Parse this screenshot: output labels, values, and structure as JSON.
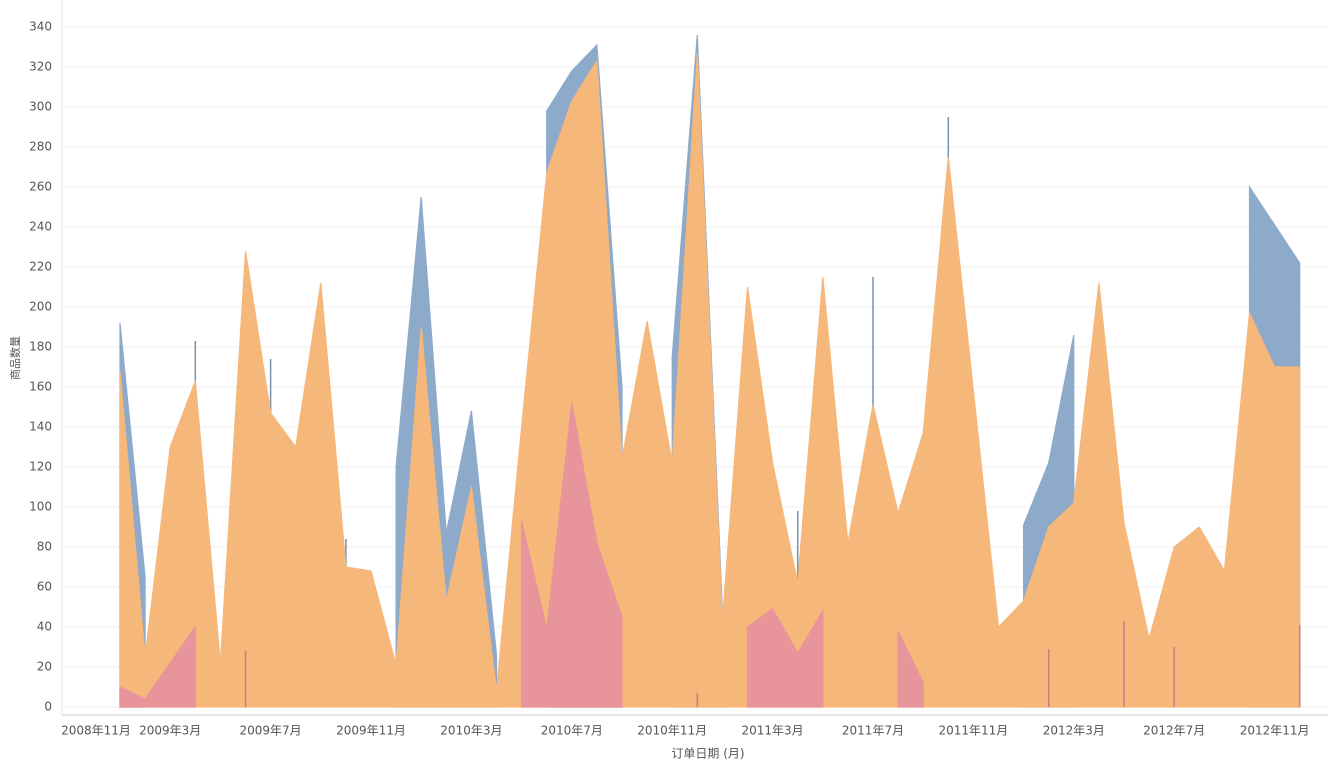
{
  "chart_data": {
    "type": "area",
    "x_label": "订单日期 (月)",
    "y_label": "商品数量",
    "categories": [
      "2008年11月",
      null,
      null,
      null,
      "2009年3月",
      null,
      null,
      null,
      "2009年7月",
      null,
      null,
      null,
      "2009年11月",
      null,
      null,
      null,
      "2010年3月",
      null,
      null,
      null,
      "2010年7月",
      null,
      null,
      null,
      "2010年11月",
      null,
      null,
      null,
      "2011年3月",
      null,
      null,
      null,
      "2011年7月",
      null,
      null,
      null,
      "2011年11月",
      null,
      null,
      null,
      "2012年3月",
      null,
      null,
      null,
      "2012年7月",
      null,
      null,
      null,
      "2012年11月",
      null
    ],
    "ylim": [
      -4,
      352
    ],
    "yticks": [
      0,
      20,
      40,
      60,
      80,
      100,
      120,
      140,
      160,
      180,
      200,
      220,
      240,
      260,
      280,
      300,
      320,
      340
    ],
    "grid": true,
    "series": [
      {
        "color": "#8eaacb",
        "values": [
          null,
          null,
          192,
          65,
          null,
          183,
          null,
          null,
          174,
          null,
          null,
          84,
          null,
          120,
          255,
          87,
          148,
          26,
          null,
          298,
          318,
          331,
          160,
          null,
          175,
          336,
          48,
          null,
          null,
          98,
          null,
          null,
          215,
          null,
          null,
          295,
          null,
          null,
          91,
          122,
          186,
          null,
          null,
          null,
          null,
          null,
          null,
          260,
          241,
          222
        ]
      },
      {
        "color": "#f5b77a",
        "values": [
          null,
          null,
          168,
          25,
          130,
          163,
          22,
          228,
          147,
          130,
          212,
          70,
          68,
          21,
          190,
          53,
          110,
          8,
          140,
          267,
          303,
          323,
          124,
          193,
          122,
          327,
          43,
          210,
          122,
          62,
          215,
          82,
          151,
          97,
          137,
          275,
          158,
          40,
          53,
          90,
          102,
          212,
          92,
          34,
          80,
          90,
          68,
          197,
          170,
          170
        ]
      },
      {
        "color": "#e8949b",
        "values": [
          null,
          null,
          10,
          4,
          22,
          40,
          null,
          28,
          null,
          null,
          null,
          null,
          null,
          null,
          null,
          null,
          null,
          null,
          93,
          39,
          152,
          82,
          45,
          null,
          null,
          7,
          null,
          40,
          49,
          27,
          48,
          null,
          null,
          38,
          12,
          null,
          null,
          null,
          null,
          29,
          null,
          null,
          43,
          null,
          30,
          null,
          null,
          null,
          null,
          41
        ]
      }
    ]
  }
}
